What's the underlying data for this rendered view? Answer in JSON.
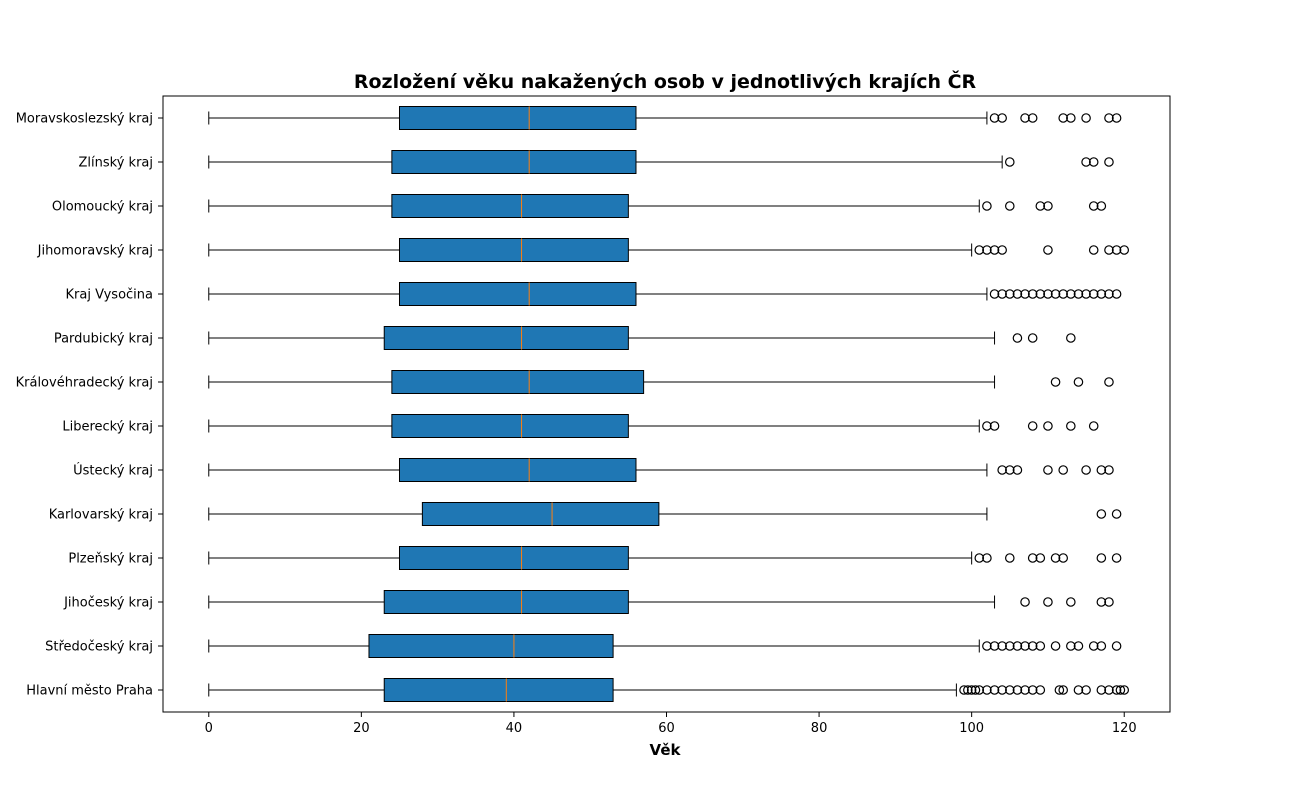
{
  "chart_data": {
    "type": "boxplot",
    "orientation": "horizontal",
    "title": "Rozložení věku nakažených osob v jednotlivých krajích ČR",
    "xlabel": "Věk",
    "ylabel": "",
    "xlim": [
      -6,
      126
    ],
    "xticks": [
      0,
      20,
      40,
      60,
      80,
      100,
      120
    ],
    "grid": false,
    "box_color": "#1f77b4",
    "median_color": "#ff7f0e",
    "categories": [
      {
        "name": "Hlavní město Praha",
        "whislo": 0,
        "q1": 23,
        "med": 39,
        "q3": 53,
        "whishi": 98,
        "fliers": [
          99,
          99.5,
          100,
          100.5,
          101,
          102,
          103,
          104,
          105,
          106,
          107,
          108,
          109,
          111.5,
          112,
          114,
          115,
          117,
          118,
          119,
          119.5,
          120
        ]
      },
      {
        "name": "Středočeský kraj",
        "whislo": 0,
        "q1": 21,
        "med": 40,
        "q3": 53,
        "whishi": 101,
        "fliers": [
          102,
          103,
          104,
          105,
          106,
          107,
          108,
          109,
          111,
          113,
          114,
          116,
          117,
          119
        ]
      },
      {
        "name": "Jihočeský kraj",
        "whislo": 0,
        "q1": 23,
        "med": 41,
        "q3": 55,
        "whishi": 103,
        "fliers": [
          107,
          110,
          113,
          117,
          118
        ]
      },
      {
        "name": "Plzeňský kraj",
        "whislo": 0,
        "q1": 25,
        "med": 41,
        "q3": 55,
        "whishi": 100,
        "fliers": [
          101,
          102,
          105,
          108,
          109,
          111,
          112,
          117,
          119
        ]
      },
      {
        "name": "Karlovarský kraj",
        "whislo": 0,
        "q1": 28,
        "med": 45,
        "q3": 59,
        "whishi": 102,
        "fliers": [
          117,
          119
        ]
      },
      {
        "name": "Ústecký kraj",
        "whislo": 0,
        "q1": 25,
        "med": 42,
        "q3": 56,
        "whishi": 102,
        "fliers": [
          104,
          105,
          106,
          110,
          112,
          115,
          117,
          118
        ]
      },
      {
        "name": "Liberecký kraj",
        "whislo": 0,
        "q1": 24,
        "med": 41,
        "q3": 55,
        "whishi": 101,
        "fliers": [
          102,
          103,
          108,
          110,
          113,
          116
        ]
      },
      {
        "name": "Královéhradecký kraj",
        "whislo": 0,
        "q1": 24,
        "med": 42,
        "q3": 57,
        "whishi": 103,
        "fliers": [
          111,
          114,
          118
        ]
      },
      {
        "name": "Pardubický kraj",
        "whislo": 0,
        "q1": 23,
        "med": 41,
        "q3": 55,
        "whishi": 103,
        "fliers": [
          106,
          108,
          113
        ]
      },
      {
        "name": "Kraj Vysočina",
        "whislo": 0,
        "q1": 25,
        "med": 42,
        "q3": 56,
        "whishi": 102,
        "fliers": [
          103,
          104,
          105,
          106,
          107,
          108,
          109,
          110,
          111,
          112,
          113,
          114,
          115,
          116,
          117,
          118,
          119
        ]
      },
      {
        "name": "Jihomoravský kraj",
        "whislo": 0,
        "q1": 25,
        "med": 41,
        "q3": 55,
        "whishi": 100,
        "fliers": [
          101,
          102,
          103,
          104,
          110,
          116,
          118,
          119,
          120
        ]
      },
      {
        "name": "Olomoucký kraj",
        "whislo": 0,
        "q1": 24,
        "med": 41,
        "q3": 55,
        "whishi": 101,
        "fliers": [
          102,
          105,
          109,
          110,
          116,
          117
        ]
      },
      {
        "name": "Zlínský kraj",
        "whislo": 0,
        "q1": 24,
        "med": 42,
        "q3": 56,
        "whishi": 104,
        "fliers": [
          105,
          115,
          116,
          118
        ]
      },
      {
        "name": "Moravskoslezský kraj",
        "whislo": 0,
        "q1": 25,
        "med": 42,
        "q3": 56,
        "whishi": 102,
        "fliers": [
          103,
          104,
          107,
          108,
          112,
          113,
          115,
          118,
          119
        ]
      }
    ]
  }
}
